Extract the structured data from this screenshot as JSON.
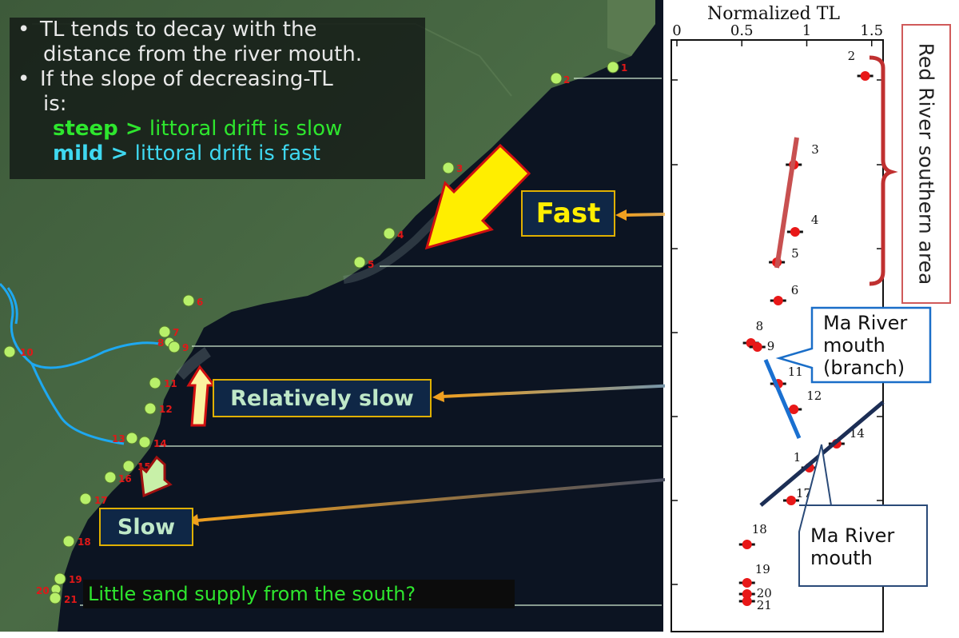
{
  "bullets": {
    "line1": "TL tends to decay with the",
    "line2": "distance from the river mouth.",
    "line3": "If the slope of decreasing-TL",
    "line4": "is:",
    "steep_word": "steep >",
    "steep_text": " littoral drift is slow",
    "mild_word": "mild >",
    "mild_text": " littoral drift is fast",
    "bullet_symbol": "•"
  },
  "labels": {
    "fast": "Fast",
    "relatively_slow": "Relatively slow",
    "slow": "Slow",
    "bottom_note": "Little sand supply from the south?"
  },
  "callouts": {
    "ma_branch": [
      "Ma River",
      "mouth",
      "(branch)"
    ],
    "ma_mouth": [
      "Ma River",
      "mouth"
    ],
    "red_river": "Red River southern area"
  },
  "map_points": [
    {
      "id": "1"
    },
    {
      "id": "2"
    },
    {
      "id": "3"
    },
    {
      "id": "4"
    },
    {
      "id": "5"
    },
    {
      "id": "6"
    },
    {
      "id": "7"
    },
    {
      "id": "8"
    },
    {
      "id": "9"
    },
    {
      "id": "10"
    },
    {
      "id": "11"
    },
    {
      "id": "12"
    },
    {
      "id": "13"
    },
    {
      "id": "14"
    },
    {
      "id": "15"
    },
    {
      "id": "16"
    },
    {
      "id": "17"
    },
    {
      "id": "18"
    },
    {
      "id": "19"
    },
    {
      "id": "20"
    },
    {
      "id": "21"
    }
  ],
  "chart_data": {
    "type": "scatter",
    "xlabel": "Normalized TL",
    "xlim": [
      0,
      1.6
    ],
    "xticks": [
      "0",
      "0.5",
      "1",
      "1.5"
    ],
    "points": [
      {
        "label": "2",
        "x": 1.45
      },
      {
        "label": "3",
        "x": 0.9
      },
      {
        "label": "4",
        "x": 0.91
      },
      {
        "label": "5",
        "x": 0.77
      },
      {
        "label": "6",
        "x": 0.78
      },
      {
        "label": "8",
        "x": 0.57
      },
      {
        "label": "9",
        "x": 0.62
      },
      {
        "label": "11",
        "x": 0.78
      },
      {
        "label": "12",
        "x": 0.9
      },
      {
        "label": "14",
        "x": 1.23
      },
      {
        "label": "1",
        "x": 1.02
      },
      {
        "label": "17",
        "x": 0.88
      },
      {
        "label": "18",
        "x": 0.54
      },
      {
        "label": "19",
        "x": 0.54
      },
      {
        "label": "20",
        "x": 0.54
      },
      {
        "label": "21",
        "x": 0.54
      }
    ]
  },
  "colors": {
    "point_fill": "#b8f06a",
    "point_label": "#e01818",
    "arrow_yellow": "#ffee00",
    "arrow_red": "#d01010",
    "label_border": "#e0b000",
    "label_bg": "#0f2746",
    "fast_text": "#ffee00",
    "slow_text": "#bfe8c8",
    "river": "#1ea8f0",
    "trend_red": "#c85050",
    "trend_blue": "#1a70d0",
    "trend_navy": "#1c2e55"
  }
}
